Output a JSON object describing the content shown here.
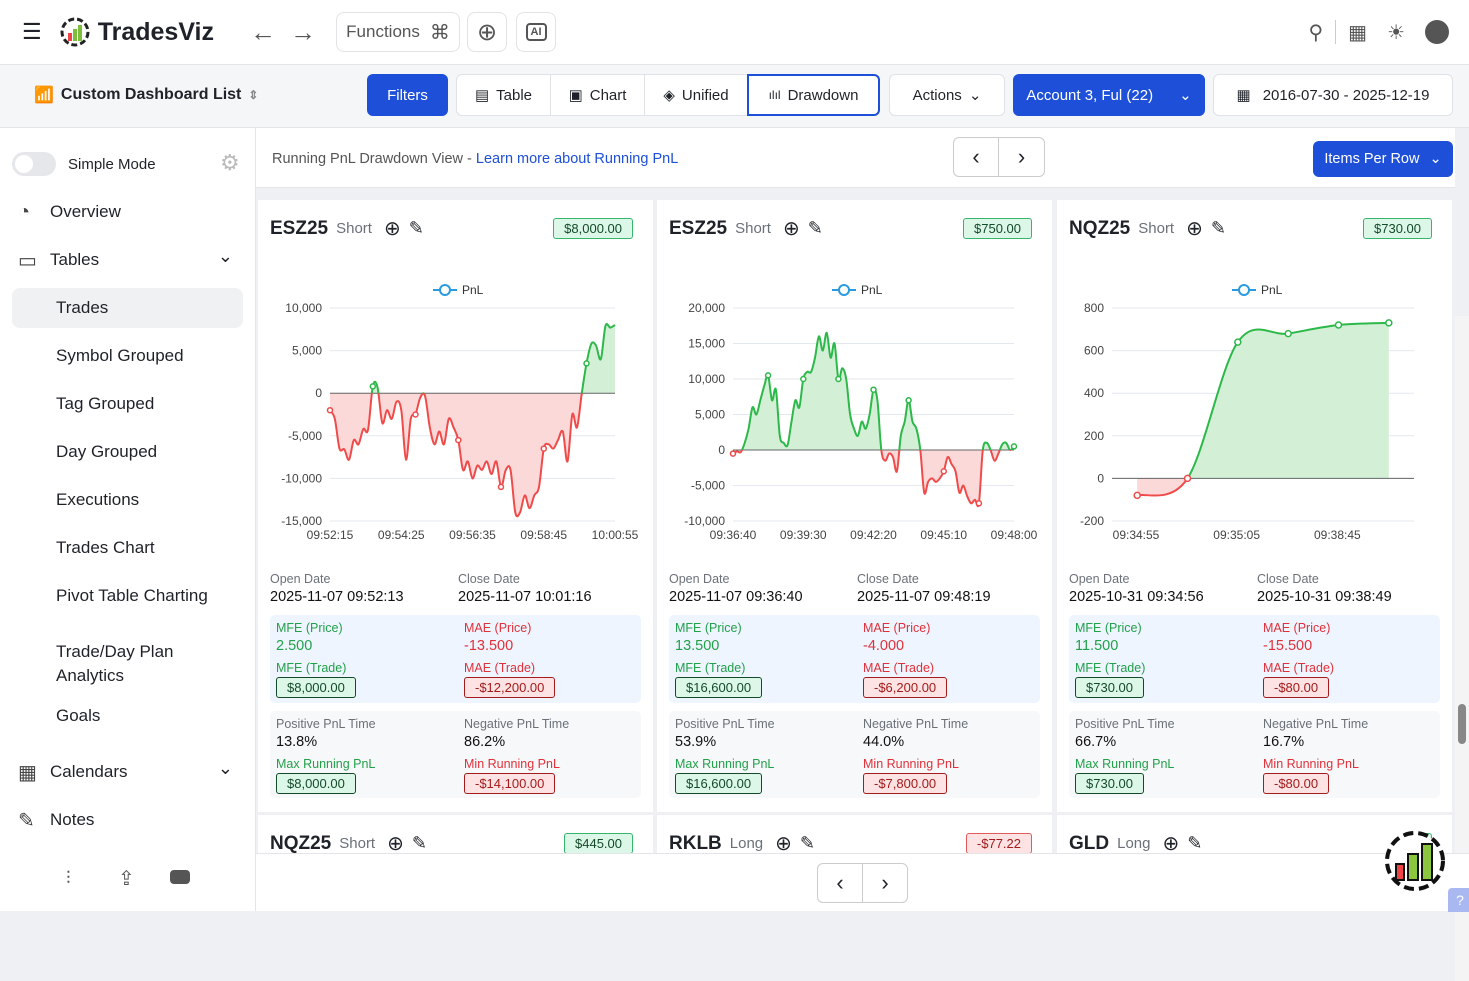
{
  "app": {
    "name": "TradesViz",
    "functions_label": "Functions"
  },
  "toolbar": {
    "dashboard_label": "Custom Dashboard List",
    "filters": "Filters",
    "views": [
      "Table",
      "Chart",
      "Unified",
      "Drawdown"
    ],
    "active_view": "Drawdown",
    "actions": "Actions",
    "account": "Account 3, Ful (22)",
    "date_range": "2016-07-30 - 2025-12-19"
  },
  "sidebar": {
    "simple_mode": "Simple Mode",
    "items": [
      {
        "label": "Overview",
        "type": "top",
        "icon": "pie-chart-icon"
      },
      {
        "label": "Tables",
        "type": "top",
        "icon": "table-icon",
        "expand": true
      },
      {
        "label": "Trades",
        "type": "sub",
        "active": true
      },
      {
        "label": "Symbol Grouped",
        "type": "sub"
      },
      {
        "label": "Tag Grouped",
        "type": "sub"
      },
      {
        "label": "Day Grouped",
        "type": "sub"
      },
      {
        "label": "Executions",
        "type": "sub"
      },
      {
        "label": "Trades Chart",
        "type": "sub"
      },
      {
        "label": "Pivot Table Charting",
        "type": "sub"
      },
      {
        "label": "Trade/Day Plan Analytics",
        "type": "sub"
      },
      {
        "label": "Goals",
        "type": "sub"
      },
      {
        "label": "Calendars",
        "type": "top",
        "icon": "calendar-icon",
        "expand": true
      },
      {
        "label": "Notes",
        "type": "top",
        "icon": "notes-icon"
      }
    ]
  },
  "info": {
    "text": "Running PnL Drawdown View - ",
    "link": "Learn more about Running PnL",
    "items_per_row": "Items Per Row"
  },
  "colors": {
    "accent": "#1d4fd8",
    "positive": "#2db84a",
    "negative": "#f04b4b"
  },
  "labels": {
    "open": "Open Date",
    "close": "Close Date",
    "mfe_price": "MFE (Price)",
    "mae_price": "MAE (Price)",
    "mfe_trade": "MFE (Trade)",
    "mae_trade": "MAE (Trade)",
    "pos_time": "Positive PnL Time",
    "neg_time": "Negative PnL Time",
    "max_pnl": "Max Running PnL",
    "min_pnl": "Min Running PnL",
    "legend": "PnL"
  },
  "cards": [
    {
      "symbol": "ESZ25",
      "side": "Short",
      "pnl": "$8,000.00",
      "pnl_sign": "pos",
      "open": "2025-11-07 09:52:13",
      "close": "2025-11-07 10:01:16",
      "mfe_price": "2.500",
      "mae_price": "-13.500",
      "mfe_trade": "$8,000.00",
      "mae_trade": "-$12,200.00",
      "pos_time": "13.8%",
      "neg_time": "86.2%",
      "max_pnl": "$8,000.00",
      "min_pnl": "-$14,100.00"
    },
    {
      "symbol": "ESZ25",
      "side": "Short",
      "pnl": "$750.00",
      "pnl_sign": "pos",
      "open": "2025-11-07 09:36:40",
      "close": "2025-11-07 09:48:19",
      "mfe_price": "13.500",
      "mae_price": "-4.000",
      "mfe_trade": "$16,600.00",
      "mae_trade": "-$6,200.00",
      "pos_time": "53.9%",
      "neg_time": "44.0%",
      "max_pnl": "$16,600.00",
      "min_pnl": "-$7,800.00"
    },
    {
      "symbol": "NQZ25",
      "side": "Short",
      "pnl": "$730.00",
      "pnl_sign": "pos",
      "open": "2025-10-31 09:34:56",
      "close": "2025-10-31 09:38:49",
      "mfe_price": "11.500",
      "mae_price": "-15.500",
      "mfe_trade": "$730.00",
      "mae_trade": "-$80.00",
      "pos_time": "66.7%",
      "neg_time": "16.7%",
      "max_pnl": "$730.00",
      "min_pnl": "-$80.00"
    }
  ],
  "next_cards": [
    {
      "symbol": "NQZ25",
      "side": "Short",
      "pnl": "$445.00",
      "pnl_sign": "pos"
    },
    {
      "symbol": "RKLB",
      "side": "Long",
      "pnl": "-$77.22",
      "pnl_sign": "neg"
    },
    {
      "symbol": "GLD",
      "side": "Long",
      "pnl": "$",
      "pnl_sign": "pos"
    }
  ],
  "chart_data": [
    {
      "type": "area",
      "legend": "PnL",
      "ylim": [
        -15000,
        10000
      ],
      "yticks": [
        10000,
        5000,
        0,
        -5000,
        -10000,
        -15000
      ],
      "xticks": [
        "09:52:15",
        "09:54:25",
        "09:56:35",
        "09:58:45",
        "10:00:55"
      ],
      "values": [
        -2000,
        -3000,
        -6500,
        -6600,
        -7800,
        -5500,
        -6000,
        -4200,
        -4300,
        800,
        700,
        -3500,
        -2000,
        -3000,
        -1000,
        -2000,
        -7800,
        -3000,
        -2500,
        -500,
        -300,
        -4000,
        -6000,
        -4500,
        -6000,
        -3000,
        -4000,
        -5500,
        -9000,
        -8000,
        -10000,
        -8500,
        -9000,
        -8000,
        -9500,
        -8000,
        -11000,
        -9000,
        -9000,
        -14000,
        -14000,
        -12000,
        -13500,
        -12000,
        -11000,
        -6500,
        -6000,
        -6500,
        -5500,
        -4500,
        -8000,
        -2500,
        -4000,
        0,
        3500,
        5800,
        5600,
        4000,
        7900,
        7700,
        8000
      ]
    },
    {
      "type": "area",
      "legend": "PnL",
      "ylim": [
        -10000,
        20000
      ],
      "yticks": [
        20000,
        15000,
        10000,
        5000,
        0,
        -5000,
        -10000
      ],
      "xticks": [
        "09:36:40",
        "09:39:30",
        "09:42:20",
        "09:45:10",
        "09:48:00"
      ],
      "values": [
        -500,
        -200,
        -300,
        1000,
        3000,
        6000,
        5000,
        7000,
        9000,
        10500,
        7000,
        8500,
        2000,
        1000,
        700,
        4000,
        7000,
        6000,
        10000,
        11000,
        11000,
        13000,
        16000,
        14000,
        16500,
        13000,
        15000,
        10000,
        11500,
        10000,
        5000,
        3000,
        2000,
        4000,
        3000,
        5000,
        8500,
        7000,
        0,
        -1500,
        -500,
        -1000,
        -3000,
        2000,
        4000,
        7000,
        4000,
        3000,
        0,
        -6000,
        -4500,
        -4000,
        -4500,
        -4000,
        -3000,
        -1000,
        -2000,
        -3000,
        -6000,
        -5000,
        -6500,
        -7500,
        -7000,
        -7500,
        0,
        1000,
        0,
        -1500,
        -500,
        800,
        1000,
        0,
        500
      ]
    },
    {
      "type": "area",
      "legend": "PnL",
      "ylim": [
        -200,
        800
      ],
      "yticks": [
        800,
        600,
        400,
        200,
        0,
        -200
      ],
      "xticks": [
        "09:34:55",
        "09:35:05",
        "09:38:45"
      ],
      "values": [
        -80,
        0,
        640,
        680,
        720,
        730
      ]
    }
  ],
  "pagination": {
    "prev": "‹",
    "next": "›"
  }
}
